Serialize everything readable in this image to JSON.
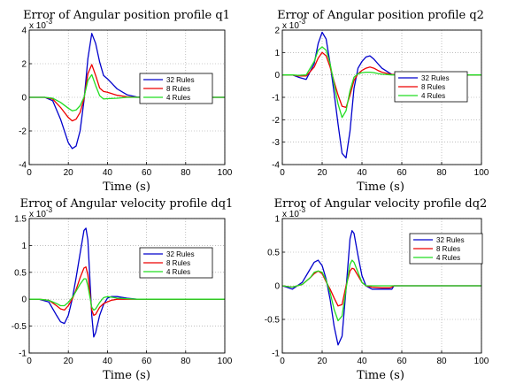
{
  "colors": {
    "r32": "#0000cc",
    "r8": "#ee0000",
    "r4": "#22dd22"
  },
  "chart_data": [
    {
      "type": "line",
      "title": "Error of Angular position profile q1",
      "multiplier": "x 10",
      "multiplier_exp": "-3",
      "xlabel": "Time (s)",
      "xlim": [
        0,
        100
      ],
      "ylim": [
        -4,
        4
      ],
      "xticks": [
        "0",
        "20",
        "40",
        "60",
        "80",
        "100"
      ],
      "yticks": [
        "-4",
        "-2",
        "0",
        "2",
        "4"
      ],
      "grid": true,
      "legend_position": "center-right",
      "series": [
        {
          "name": "32 Rules",
          "color": "#0000cc",
          "x": [
            0,
            8,
            12,
            16,
            20,
            22,
            24,
            26,
            28,
            30,
            32,
            34,
            36,
            38,
            40,
            45,
            50,
            55,
            60,
            100
          ],
          "y": [
            0,
            0,
            -0.2,
            -1.3,
            -2.7,
            -3.05,
            -2.9,
            -2.0,
            -0.2,
            2.3,
            3.8,
            3.2,
            2.1,
            1.3,
            1.1,
            0.5,
            0.15,
            0.02,
            0,
            0
          ]
        },
        {
          "name": "8 Rules",
          "color": "#ee0000",
          "x": [
            0,
            8,
            12,
            16,
            20,
            22,
            24,
            26,
            28,
            30,
            32,
            34,
            36,
            38,
            40,
            45,
            50,
            55,
            60,
            100
          ],
          "y": [
            0,
            0,
            -0.1,
            -0.6,
            -1.2,
            -1.4,
            -1.3,
            -0.9,
            -0.1,
            1.4,
            1.95,
            1.3,
            0.55,
            0.35,
            0.3,
            0.12,
            0.03,
            0,
            0,
            0
          ]
        },
        {
          "name": "4 Rules",
          "color": "#22dd22",
          "x": [
            0,
            8,
            12,
            16,
            20,
            22,
            24,
            26,
            28,
            30,
            32,
            34,
            36,
            38,
            40,
            45,
            50,
            55,
            60,
            100
          ],
          "y": [
            0,
            0,
            -0.05,
            -0.3,
            -0.65,
            -0.8,
            -0.75,
            -0.5,
            0,
            1.0,
            1.35,
            0.7,
            0.1,
            -0.1,
            -0.08,
            -0.05,
            0,
            0,
            0,
            0
          ]
        }
      ]
    },
    {
      "type": "line",
      "title": "Error of Angular position profile q2",
      "multiplier": "x 10",
      "multiplier_exp": "-3",
      "xlabel": "Time (s)",
      "xlim": [
        0,
        100
      ],
      "ylim": [
        -4,
        2
      ],
      "xticks": [
        "0",
        "20",
        "40",
        "60",
        "80",
        "100"
      ],
      "yticks": [
        "-4",
        "-3",
        "-2",
        "-1",
        "0",
        "1",
        "2"
      ],
      "grid": true,
      "legend_position": "center-right",
      "series": [
        {
          "name": "32 Rules",
          "color": "#0000cc",
          "x": [
            0,
            5,
            8,
            12,
            16,
            18,
            20,
            22,
            24,
            26,
            28,
            30,
            32,
            34,
            36,
            38,
            40,
            42,
            44,
            46,
            48,
            50,
            55,
            60,
            100
          ],
          "y": [
            0,
            0,
            -0.1,
            -0.2,
            0.5,
            1.4,
            1.9,
            1.6,
            0.5,
            -0.8,
            -2.2,
            -3.5,
            -3.7,
            -2.5,
            -0.6,
            0.3,
            0.6,
            0.8,
            0.85,
            0.7,
            0.5,
            0.3,
            0.02,
            0,
            0
          ]
        },
        {
          "name": "8 Rules",
          "color": "#ee0000",
          "x": [
            0,
            5,
            8,
            12,
            16,
            18,
            20,
            22,
            24,
            26,
            28,
            30,
            32,
            34,
            36,
            38,
            40,
            42,
            44,
            46,
            48,
            50,
            55,
            60,
            100
          ],
          "y": [
            0,
            0,
            -0.05,
            -0.05,
            0.35,
            0.75,
            1.0,
            0.85,
            0.35,
            -0.3,
            -0.9,
            -1.4,
            -1.45,
            -0.9,
            -0.25,
            0.05,
            0.2,
            0.3,
            0.35,
            0.3,
            0.2,
            0.12,
            0.02,
            0,
            0
          ]
        },
        {
          "name": "4 Rules",
          "color": "#22dd22",
          "x": [
            0,
            5,
            8,
            12,
            16,
            18,
            20,
            22,
            24,
            26,
            28,
            30,
            32,
            34,
            36,
            38,
            40,
            42,
            44,
            46,
            48,
            50,
            55,
            60,
            100
          ],
          "y": [
            0,
            0,
            -0.02,
            0,
            0.6,
            1.1,
            1.25,
            1.1,
            0.5,
            -0.4,
            -1.3,
            -1.9,
            -1.6,
            -0.7,
            -0.1,
            0.05,
            0.1,
            0.12,
            0.12,
            0.1,
            0.06,
            0.03,
            0,
            0,
            0
          ]
        }
      ]
    },
    {
      "type": "line",
      "title": "Error of Angular velocity profile dq1",
      "multiplier": "x 10",
      "multiplier_exp": "-3",
      "xlabel": "Time (s)",
      "xlim": [
        0,
        100
      ],
      "ylim": [
        -1,
        1.5
      ],
      "xticks": [
        "0",
        "20",
        "40",
        "60",
        "80",
        "100"
      ],
      "yticks": [
        "-1",
        "-0.5",
        "0",
        "0.5",
        "1",
        "1.5"
      ],
      "grid": true,
      "legend_position": "center-right",
      "series": [
        {
          "name": "32 Rules",
          "color": "#0000cc",
          "x": [
            0,
            5,
            10,
            14,
            16,
            18,
            20,
            22,
            24,
            26,
            28,
            29,
            30,
            32,
            33,
            34,
            36,
            38,
            40,
            42,
            45,
            50,
            55,
            60,
            100
          ],
          "y": [
            0,
            0,
            -0.05,
            -0.3,
            -0.42,
            -0.45,
            -0.3,
            0,
            0.4,
            0.85,
            1.28,
            1.32,
            1.1,
            -0.3,
            -0.7,
            -0.62,
            -0.3,
            -0.1,
            0.02,
            0.05,
            0.05,
            0.02,
            0,
            0,
            0
          ]
        },
        {
          "name": "8 Rules",
          "color": "#ee0000",
          "x": [
            0,
            5,
            10,
            14,
            16,
            18,
            20,
            22,
            24,
            26,
            28,
            29,
            30,
            32,
            33,
            34,
            36,
            38,
            40,
            42,
            45,
            50,
            55,
            60,
            100
          ],
          "y": [
            0,
            0,
            -0.02,
            -0.12,
            -0.18,
            -0.2,
            -0.12,
            0,
            0.18,
            0.4,
            0.58,
            0.6,
            0.45,
            -0.2,
            -0.3,
            -0.28,
            -0.15,
            -0.08,
            -0.05,
            -0.02,
            0,
            0,
            0,
            0,
            0
          ]
        },
        {
          "name": "4 Rules",
          "color": "#22dd22",
          "x": [
            0,
            5,
            10,
            14,
            16,
            18,
            20,
            22,
            24,
            26,
            28,
            29,
            30,
            32,
            33,
            34,
            36,
            38,
            40,
            42,
            45,
            50,
            55,
            60,
            100
          ],
          "y": [
            0,
            0,
            -0.02,
            -0.08,
            -0.12,
            -0.12,
            -0.06,
            0.03,
            0.15,
            0.28,
            0.38,
            0.38,
            0.25,
            -0.15,
            -0.2,
            -0.18,
            -0.06,
            0.03,
            0.05,
            0.04,
            0.02,
            0.01,
            0,
            0,
            0
          ]
        }
      ]
    },
    {
      "type": "line",
      "title": "Error of Angular velocity profile dq2",
      "multiplier": "x 10",
      "multiplier_exp": "-3",
      "xlabel": "Time (s)",
      "xlim": [
        0,
        100
      ],
      "ylim": [
        -1,
        1
      ],
      "xticks": [
        "0",
        "20",
        "40",
        "60",
        "80",
        "100"
      ],
      "yticks": [
        "-1",
        "-0.5",
        "0",
        "0.5",
        "1"
      ],
      "grid": true,
      "legend_position": "top-right",
      "series": [
        {
          "name": "32 Rules",
          "color": "#0000cc",
          "x": [
            0,
            5,
            10,
            14,
            16,
            18,
            20,
            22,
            24,
            26,
            28,
            30,
            32,
            34,
            35,
            36,
            38,
            40,
            42,
            45,
            50,
            54,
            55,
            56,
            60,
            100
          ],
          "y": [
            0,
            -0.05,
            0.05,
            0.25,
            0.35,
            0.38,
            0.3,
            0.1,
            -0.2,
            -0.6,
            -0.88,
            -0.75,
            -0.05,
            0.7,
            0.82,
            0.78,
            0.45,
            0.15,
            0,
            -0.05,
            -0.05,
            -0.05,
            -0.05,
            0,
            0,
            0
          ]
        },
        {
          "name": "8 Rules",
          "color": "#ee0000",
          "x": [
            0,
            5,
            10,
            14,
            16,
            18,
            20,
            22,
            24,
            26,
            28,
            30,
            32,
            34,
            35,
            36,
            38,
            40,
            42,
            45,
            50,
            54,
            55,
            56,
            60,
            100
          ],
          "y": [
            0,
            -0.02,
            0.02,
            0.12,
            0.18,
            0.22,
            0.18,
            0.06,
            -0.05,
            -0.18,
            -0.3,
            -0.28,
            0,
            0.22,
            0.26,
            0.25,
            0.15,
            0.05,
            0,
            -0.02,
            -0.03,
            -0.03,
            -0.02,
            0,
            0,
            0
          ]
        },
        {
          "name": "4 Rules",
          "color": "#22dd22",
          "x": [
            0,
            5,
            10,
            14,
            16,
            18,
            20,
            22,
            24,
            26,
            28,
            30,
            32,
            34,
            35,
            36,
            38,
            40,
            42,
            45,
            50,
            54,
            55,
            56,
            60,
            100
          ],
          "y": [
            0,
            -0.02,
            0.02,
            0.12,
            0.2,
            0.22,
            0.2,
            0.08,
            -0.1,
            -0.35,
            -0.52,
            -0.45,
            -0.05,
            0.32,
            0.38,
            0.35,
            0.2,
            0.05,
            0,
            0,
            0,
            0,
            0,
            0,
            0,
            0
          ]
        }
      ]
    }
  ]
}
